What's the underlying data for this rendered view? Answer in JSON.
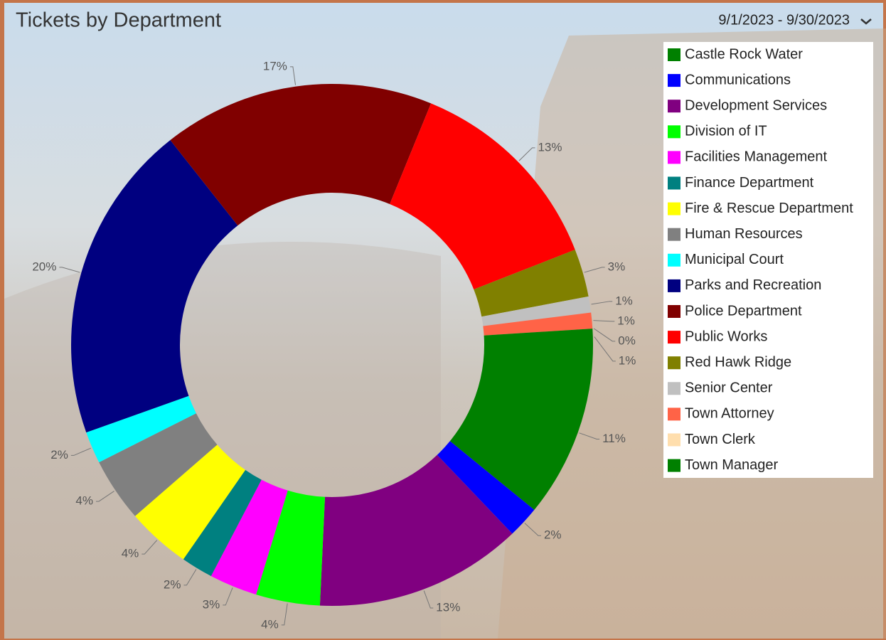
{
  "header": {
    "date_range": "9/1/2023 - 9/30/2023"
  },
  "chart_data": {
    "type": "donut",
    "title": "Tickets by Department",
    "categories": [
      "Castle Rock Water",
      "Communications",
      "Development Services",
      "Division of IT",
      "Facilities Management",
      "Finance Department",
      "Fire & Rescue Department",
      "Human Resources",
      "Municipal Court",
      "Parks and Recreation",
      "Police Department",
      "Public Works",
      "Red Hawk Ridge",
      "Senior Center",
      "Town Attorney",
      "Town Clerk",
      "Town Manager"
    ],
    "values": [
      11,
      2,
      13,
      4,
      3,
      2,
      4,
      4,
      2,
      20,
      17,
      13,
      3,
      1,
      1,
      0,
      1
    ],
    "value_labels": [
      "11%",
      "2%",
      "13%",
      "4%",
      "3%",
      "2%",
      "4%",
      "4%",
      "2%",
      "20%",
      "17%",
      "13%",
      "3%",
      "1%",
      "1%",
      "0%",
      "1%"
    ],
    "colors": [
      "#008000",
      "#0000ff",
      "#800080",
      "#00ff00",
      "#ff00ff",
      "#008080",
      "#ffff00",
      "#808080",
      "#00ffff",
      "#000080",
      "#800000",
      "#ff0000",
      "#808000",
      "#c0c0c0",
      "#ff6347",
      "#ffdead",
      "#008000"
    ],
    "legend": "right"
  }
}
